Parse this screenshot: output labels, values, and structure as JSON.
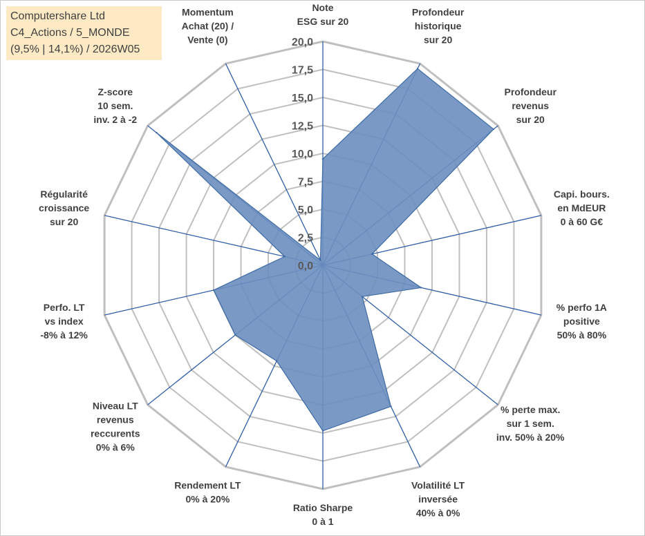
{
  "info_box": {
    "line1": "Computershare Ltd",
    "line2": "C4_Actions / 5_MONDE",
    "line3": "(9,5% | 14,1%) / 2026W05"
  },
  "colors": {
    "fill": "#6b8fbf",
    "line": "#3d6aa6",
    "spoke": "#2f5ea8",
    "grid": "#bfbfbf",
    "background": "#ffffff"
  },
  "chart_data": {
    "type": "radar",
    "title": "",
    "range": [
      0,
      20
    ],
    "ticks": [
      "0,0",
      "2,5",
      "5,0",
      "7,5",
      "10,0",
      "12,5",
      "15,0",
      "17,5",
      "20,0"
    ],
    "tick_values": [
      0,
      2.5,
      5,
      7.5,
      10,
      12.5,
      15,
      17.5,
      20
    ],
    "axes": [
      {
        "label": [
          "Note",
          "ESG sur 20"
        ],
        "value": 9.5
      },
      {
        "label": [
          "Profondeur",
          "historique",
          "sur 20"
        ],
        "value": 19.5
      },
      {
        "label": [
          "Profondeur",
          "revenus",
          "sur 20"
        ],
        "value": 19.5
      },
      {
        "label": [
          "Capi. bours.",
          "en MdEUR",
          "0 à 60 G€"
        ],
        "value": 4.5
      },
      {
        "label": [
          "% perfo 1A",
          "positive",
          "50% à 80%"
        ],
        "value": 9.0
      },
      {
        "label": [
          "% perte max.",
          "sur 1 sem.",
          "inv. 50% à 20%"
        ],
        "value": 4.5
      },
      {
        "label": [
          "Volatilité LT",
          "inversée",
          "40% à 0%"
        ],
        "value": 14.0
      },
      {
        "label": [
          "Ratio Sharpe",
          "0 à 1"
        ],
        "value": 14.8
      },
      {
        "label": [
          "Rendement LT",
          "0% à 20%"
        ],
        "value": 9.5
      },
      {
        "label": [
          "Niveau LT",
          "revenus",
          "reccurents",
          "0% à 6%"
        ],
        "value": 10.0
      },
      {
        "label": [
          "Perfo. LT",
          "vs index",
          "-8% à 12%"
        ],
        "value": 10.0
      },
      {
        "label": [
          "Régularité",
          "croissance",
          "sur 20"
        ],
        "value": 3.5
      },
      {
        "label": [
          "Z-score",
          "10 sem.",
          "inv. 2 à -2"
        ],
        "value": 19.0
      },
      {
        "label": [
          "Momentum",
          "Achat (20) /",
          "Vente (0)"
        ],
        "value": 0.5
      }
    ]
  }
}
